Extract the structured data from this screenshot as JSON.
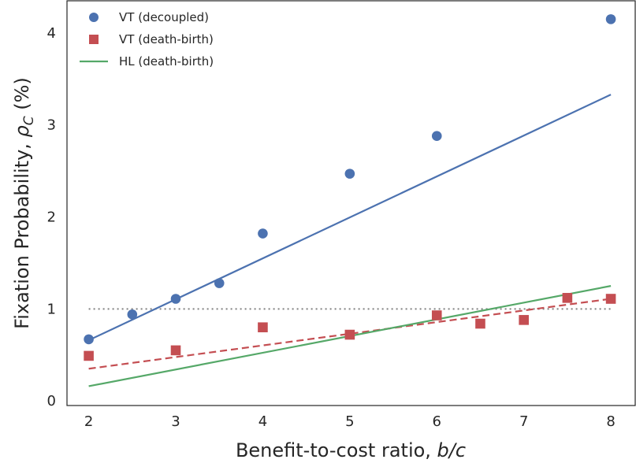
{
  "chart_data": {
    "type": "scatter",
    "xlabel": {
      "prefix": "Benefit-to-cost ratio, ",
      "math": "b/c"
    },
    "ylabel": {
      "prefix": "Fixation Probability, ",
      "symbol": "ρ",
      "subscript": "C",
      "suffix": " (%)"
    },
    "xlim": [
      1.75,
      8.28
    ],
    "ylim": [
      -0.05,
      4.35
    ],
    "xticks": [
      2,
      3,
      4,
      5,
      6,
      7,
      8
    ],
    "yticks": [
      0,
      1,
      2,
      3,
      4
    ],
    "grid": false,
    "legend_position": "top-left",
    "reference_line": {
      "y": 1.0,
      "x_range": [
        2,
        8
      ],
      "style": "dotted",
      "color": "#808080"
    },
    "series": [
      {
        "name": "VT (decoupled)",
        "kind": "points",
        "marker": "circle",
        "color": "#4c72b0",
        "x": [
          2,
          2.5,
          3,
          3.5,
          4,
          5,
          6,
          8
        ],
        "y": [
          0.67,
          0.94,
          1.11,
          1.28,
          1.82,
          2.47,
          2.88,
          4.15
        ],
        "fit": {
          "x": [
            2,
            8
          ],
          "y": [
            0.66,
            3.33
          ],
          "style": "solid"
        }
      },
      {
        "name": "VT (death-birth)",
        "kind": "points",
        "marker": "square",
        "color": "#c44e52",
        "x": [
          2,
          3,
          4,
          5,
          6,
          6.5,
          7,
          7.5,
          8
        ],
        "y": [
          0.49,
          0.55,
          0.8,
          0.72,
          0.93,
          0.84,
          0.88,
          1.12,
          1.11
        ],
        "fit": {
          "x": [
            2,
            8
          ],
          "y": [
            0.35,
            1.11
          ],
          "style": "dashed"
        }
      },
      {
        "name": "HL (death-birth)",
        "kind": "line",
        "color": "#55a868",
        "x": [
          2,
          8
        ],
        "y": [
          0.16,
          1.25
        ],
        "style": "solid"
      }
    ]
  }
}
